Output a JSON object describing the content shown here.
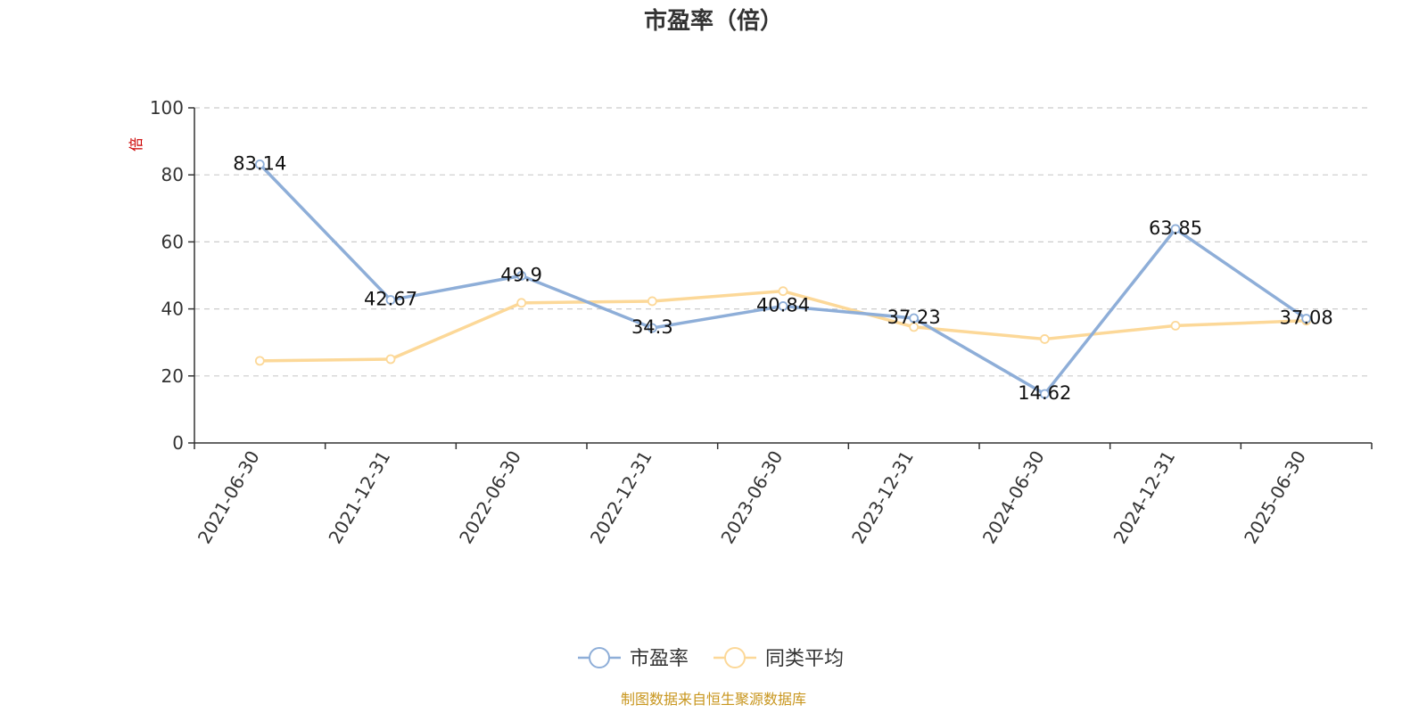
{
  "chart_data": {
    "type": "line",
    "title": "市盈率（倍）",
    "ylabel": "倍",
    "ylim": [
      0,
      100
    ],
    "yticks": [
      0,
      20,
      40,
      60,
      80,
      100
    ],
    "grid": true,
    "legend_position": "bottom",
    "categories": [
      "2021-06-30",
      "2021-12-31",
      "2022-06-30",
      "2022-12-31",
      "2023-06-30",
      "2023-12-31",
      "2024-06-30",
      "2024-12-31",
      "2025-06-30"
    ],
    "series": [
      {
        "name": "市盈率",
        "color": "#8eaed8",
        "values": [
          83.14,
          42.67,
          49.9,
          34.3,
          40.84,
          37.23,
          14.62,
          63.85,
          37.08
        ],
        "labels": [
          "83.14",
          "42.67",
          "49.9",
          "34.3",
          "40.84",
          "37.23",
          "14.62",
          "63.85",
          "37.08"
        ]
      },
      {
        "name": "同类平均",
        "color": "#fcd898",
        "values": [
          24.5,
          25.0,
          41.8,
          42.3,
          45.3,
          34.6,
          31.0,
          35.0,
          36.5
        ]
      }
    ]
  },
  "source": "制图数据来自恒生聚源数据库"
}
